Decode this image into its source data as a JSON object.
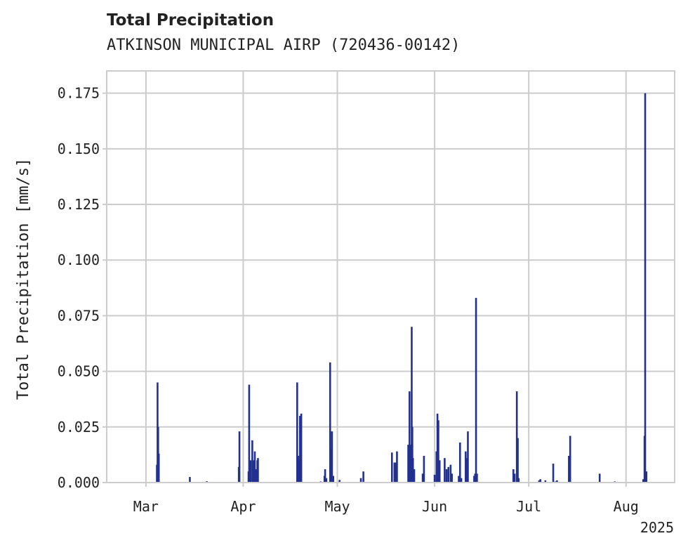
{
  "chart_data": {
    "type": "bar",
    "title": "Total Precipitation",
    "subtitle": "ATKINSON MUNICIPAL AIRP (720436-00142)",
    "xlabel": "",
    "ylabel": "Total Precipitation [mm/s]",
    "year_label": "2025",
    "x_ticks": [
      {
        "label": "Mar",
        "day": 0
      },
      {
        "label": "Apr",
        "day": 31
      },
      {
        "label": "May",
        "day": 61
      },
      {
        "label": "Jun",
        "day": 92
      },
      {
        "label": "Jul",
        "day": 122
      },
      {
        "label": "Aug",
        "day": 153
      }
    ],
    "x_range_days": [
      -12.5,
      168.5
    ],
    "y_ticks": [
      "0.000",
      "0.025",
      "0.050",
      "0.075",
      "0.100",
      "0.125",
      "0.150",
      "0.175"
    ],
    "ylim": [
      0,
      0.185
    ],
    "grid": true,
    "bar_color": "#22318f",
    "series": [
      {
        "name": "Total Precipitation",
        "points": [
          [
            3.5,
            0.008
          ],
          [
            3.7,
            0.045
          ],
          [
            3.9,
            0.025
          ],
          [
            4.1,
            0.013
          ],
          [
            14.0,
            0.0025
          ],
          [
            19.4,
            0.0006
          ],
          [
            29.6,
            0.007
          ],
          [
            29.8,
            0.023
          ],
          [
            32.7,
            0.005
          ],
          [
            32.9,
            0.044
          ],
          [
            33.3,
            0.01
          ],
          [
            33.9,
            0.019
          ],
          [
            34.3,
            0.01
          ],
          [
            34.7,
            0.014
          ],
          [
            35.1,
            0.006
          ],
          [
            35.5,
            0.01
          ],
          [
            35.7,
            0.011
          ],
          [
            48.2,
            0.045
          ],
          [
            48.5,
            0.012
          ],
          [
            48.8,
            0.01
          ],
          [
            49.1,
            0.03
          ],
          [
            49.5,
            0.031
          ],
          [
            55.7,
            0.0005
          ],
          [
            56.9,
            0.003
          ],
          [
            57.1,
            0.006
          ],
          [
            57.5,
            0.002
          ],
          [
            58.7,
            0.054
          ],
          [
            59.1,
            0.015
          ],
          [
            59.3,
            0.023
          ],
          [
            59.7,
            0.003
          ],
          [
            61.7,
            0.0012
          ],
          [
            68.5,
            0.002
          ],
          [
            69.3,
            0.005
          ],
          [
            78.4,
            0.0135
          ],
          [
            79.2,
            0.009
          ],
          [
            79.6,
            0.009
          ],
          [
            80.0,
            0.014
          ],
          [
            83.6,
            0.017
          ],
          [
            84.0,
            0.041
          ],
          [
            84.4,
            0.017
          ],
          [
            84.7,
            0.07
          ],
          [
            84.9,
            0.025
          ],
          [
            85.1,
            0.011
          ],
          [
            85.5,
            0.006
          ],
          [
            88.2,
            0.004
          ],
          [
            88.6,
            0.012
          ],
          [
            92.0,
            0.0035
          ],
          [
            92.6,
            0.014
          ],
          [
            92.9,
            0.031
          ],
          [
            93.2,
            0.028
          ],
          [
            93.6,
            0.01
          ],
          [
            95.2,
            0.011
          ],
          [
            95.8,
            0.006
          ],
          [
            96.4,
            0.007
          ],
          [
            97.1,
            0.008
          ],
          [
            97.5,
            0.004
          ],
          [
            99.7,
            0.003
          ],
          [
            100.1,
            0.018
          ],
          [
            100.5,
            0.002
          ],
          [
            101.9,
            0.014
          ],
          [
            102.3,
            0.011
          ],
          [
            102.6,
            0.023
          ],
          [
            104.6,
            0.003
          ],
          [
            104.9,
            0.004
          ],
          [
            105.2,
            0.083
          ],
          [
            105.5,
            0.004
          ],
          [
            117.1,
            0.006
          ],
          [
            117.5,
            0.004
          ],
          [
            118.2,
            0.041
          ],
          [
            118.5,
            0.02
          ],
          [
            118.8,
            0.002
          ],
          [
            125.3,
            0.001
          ],
          [
            125.7,
            0.0015
          ],
          [
            127.3,
            0.001
          ],
          [
            129.8,
            0.0085
          ],
          [
            130.5,
            0.0005
          ],
          [
            131.0,
            0.001
          ],
          [
            134.8,
            0.012
          ],
          [
            135.2,
            0.021
          ],
          [
            144.6,
            0.004
          ],
          [
            149.4,
            0.0005
          ],
          [
            158.5,
            0.0015
          ],
          [
            158.9,
            0.021
          ],
          [
            159.1,
            0.175
          ],
          [
            159.5,
            0.005
          ]
        ]
      }
    ]
  }
}
